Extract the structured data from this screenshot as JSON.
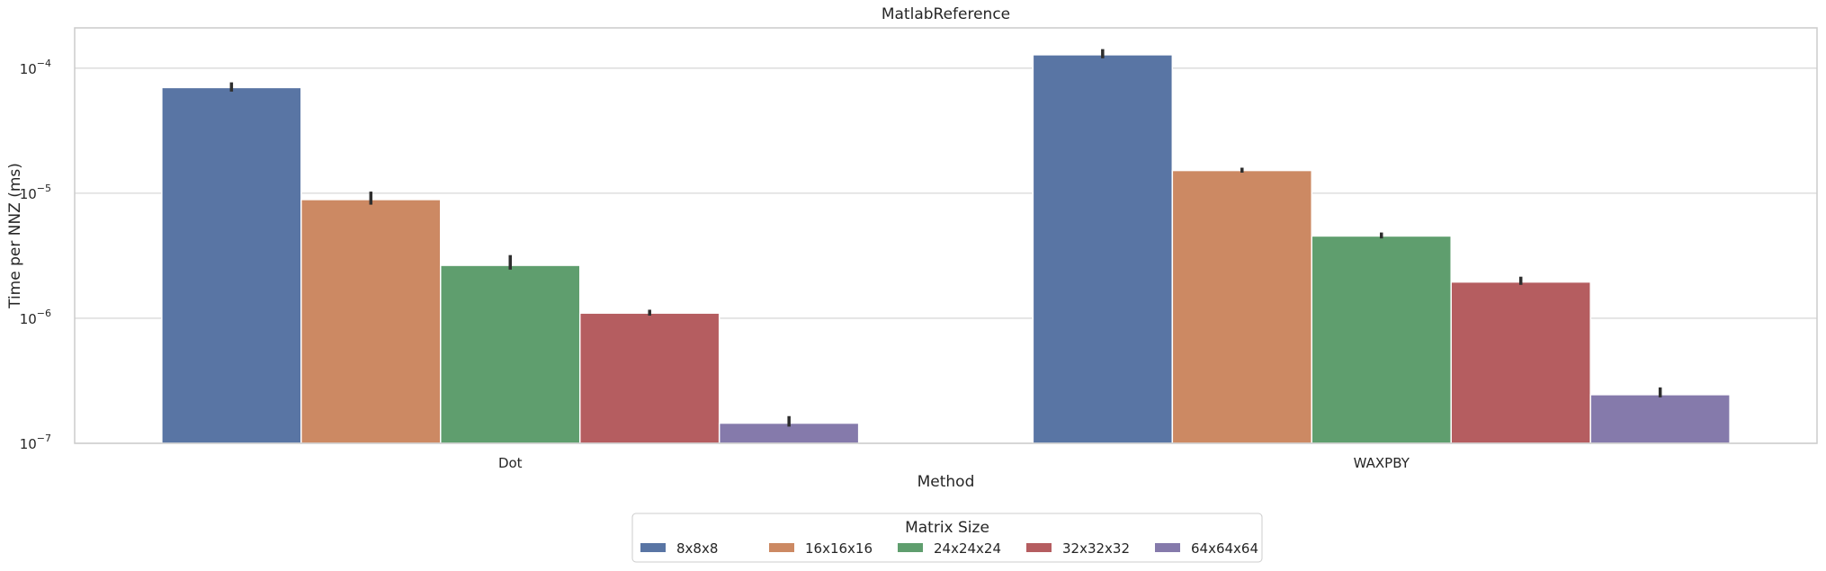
{
  "chart_data": {
    "type": "bar",
    "title": "MatlabReference",
    "xlabel": "Method",
    "ylabel": "Time per NNZ (ms)",
    "yscale": "log",
    "ylim": [
      1e-07,
      0.00021
    ],
    "yticks": [
      {
        "value": 1e-07,
        "label": "10",
        "exp": "−7"
      },
      {
        "value": 1e-06,
        "label": "10",
        "exp": "−6"
      },
      {
        "value": 1e-05,
        "label": "10",
        "exp": "−5"
      },
      {
        "value": 0.0001,
        "label": "10",
        "exp": "−4"
      }
    ],
    "grid": true,
    "categories": [
      "Dot",
      "WAXPBY"
    ],
    "series": [
      {
        "name": "8x8x8",
        "color": "#5975a4",
        "values": [
          7e-05,
          0.000128
        ],
        "err_low": [
          6.5e-05,
          0.00012
        ],
        "err_high": [
          7.7e-05,
          0.000142
        ]
      },
      {
        "name": "16x16x16",
        "color": "#cc8963",
        "values": [
          8.9e-06,
          1.52e-05
        ],
        "err_low": [
          8.1e-06,
          1.46e-05
        ],
        "err_high": [
          1.03e-05,
          1.6e-05
        ]
      },
      {
        "name": "24x24x24",
        "color": "#5f9e6e",
        "values": [
          2.65e-06,
          4.55e-06
        ],
        "err_low": [
          2.45e-06,
          4.35e-06
        ],
        "err_high": [
          3.2e-06,
          4.85e-06
        ]
      },
      {
        "name": "32x32x32",
        "color": "#b55d60",
        "values": [
          1.1e-06,
          1.95e-06
        ],
        "err_low": [
          1.05e-06,
          1.85e-06
        ],
        "err_high": [
          1.17e-06,
          2.15e-06
        ]
      },
      {
        "name": "64x64x64",
        "color": "#857aab",
        "values": [
          1.45e-07,
          2.45e-07
        ],
        "err_low": [
          1.36e-07,
          2.33e-07
        ],
        "err_high": [
          1.65e-07,
          2.8e-07
        ]
      }
    ],
    "legend": {
      "title": "Matrix Size",
      "placement": "bottom-center"
    }
  }
}
